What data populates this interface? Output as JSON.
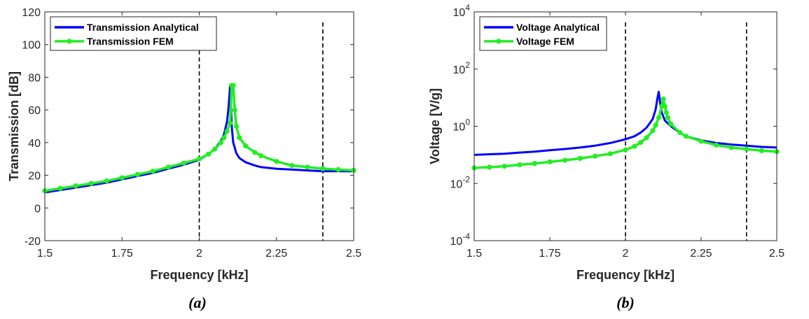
{
  "chart_data": [
    {
      "type": "line",
      "panel_label": "(a)",
      "xlabel": "Frequency [kHz]",
      "ylabel": "Transmission [dB]",
      "xlim": [
        1.5,
        2.5
      ],
      "ylim": [
        -20,
        120
      ],
      "yscale": "linear",
      "xticks": [
        1.5,
        1.75,
        2,
        2.25,
        2.5
      ],
      "xticklabels": [
        "1.5",
        "1.75",
        "2",
        "2.25",
        "2.5"
      ],
      "yticks": [
        -20,
        0,
        20,
        40,
        60,
        80,
        100,
        120
      ],
      "yticklabels": [
        "-20",
        "0",
        "20",
        "40",
        "60",
        "80",
        "100",
        "120"
      ],
      "grid": false,
      "legend_position": "top-left",
      "vlines": [
        2.0,
        2.4
      ],
      "series": [
        {
          "name": "Transmission Analytical",
          "color": "#0000ff",
          "marker": "none",
          "x": [
            1.5,
            1.55,
            1.6,
            1.65,
            1.7,
            1.75,
            1.8,
            1.85,
            1.9,
            1.95,
            2.0,
            2.03,
            2.05,
            2.07,
            2.08,
            2.09,
            2.095,
            2.1,
            2.105,
            2.11,
            2.12,
            2.13,
            2.15,
            2.18,
            2.2,
            2.25,
            2.3,
            2.35,
            2.4,
            2.45,
            2.5
          ],
          "y": [
            9.5,
            11,
            12.5,
            14,
            15.5,
            17.5,
            19.5,
            21.5,
            24,
            26.5,
            29.5,
            33,
            36,
            41,
            45,
            53,
            62,
            75,
            50,
            40,
            33.5,
            30.5,
            28,
            26,
            25,
            24,
            23.5,
            23,
            22.5,
            22.5,
            22.5
          ]
        },
        {
          "name": "Transmission FEM",
          "color": "#22ee22",
          "marker": "circle",
          "x": [
            1.5,
            1.55,
            1.6,
            1.65,
            1.7,
            1.75,
            1.8,
            1.85,
            1.9,
            1.95,
            2.0,
            2.03,
            2.05,
            2.07,
            2.08,
            2.09,
            2.1,
            2.105,
            2.11,
            2.115,
            2.12,
            2.13,
            2.15,
            2.18,
            2.2,
            2.25,
            2.3,
            2.35,
            2.4,
            2.45,
            2.5
          ],
          "y": [
            10.5,
            12,
            13.5,
            15,
            16.5,
            18.5,
            20.5,
            22.5,
            25,
            27.5,
            30,
            33,
            36,
            40,
            43,
            47,
            52,
            75,
            75,
            60,
            50,
            43,
            38,
            34,
            32,
            28.5,
            26,
            25,
            24,
            23.5,
            23
          ]
        }
      ]
    },
    {
      "type": "line",
      "panel_label": "(b)",
      "xlabel": "Frequency [kHz]",
      "ylabel": "Voltage [V/g]",
      "xlim": [
        1.5,
        2.5
      ],
      "ylim": [
        0.0001,
        10000
      ],
      "yscale": "log",
      "xticks": [
        1.5,
        1.75,
        2,
        2.25,
        2.5
      ],
      "xticklabels": [
        "1.5",
        "1.75",
        "2",
        "2.25",
        "2.5"
      ],
      "yticks": [
        0.0001,
        0.01,
        1,
        100,
        10000
      ],
      "yticklabels": [
        {
          "base": "10",
          "exp": "-4"
        },
        {
          "base": "10",
          "exp": "-2"
        },
        {
          "base": "10",
          "exp": "0"
        },
        {
          "base": "10",
          "exp": "2"
        },
        {
          "base": "10",
          "exp": "4"
        }
      ],
      "grid": false,
      "legend_position": "top-left",
      "vlines": [
        2.0,
        2.4
      ],
      "series": [
        {
          "name": "Voltage Analytical",
          "color": "#0000ff",
          "marker": "none",
          "x": [
            1.5,
            1.55,
            1.6,
            1.65,
            1.7,
            1.75,
            1.8,
            1.85,
            1.9,
            1.95,
            2.0,
            2.03,
            2.05,
            2.07,
            2.09,
            2.1,
            2.105,
            2.11,
            2.115,
            2.12,
            2.13,
            2.15,
            2.18,
            2.2,
            2.25,
            2.3,
            2.35,
            2.4,
            2.45,
            2.5
          ],
          "y": [
            0.1,
            0.105,
            0.11,
            0.12,
            0.13,
            0.145,
            0.16,
            0.18,
            0.21,
            0.26,
            0.35,
            0.45,
            0.6,
            0.9,
            1.8,
            4,
            9,
            16,
            6,
            3,
            1.6,
            1.0,
            0.6,
            0.45,
            0.32,
            0.26,
            0.23,
            0.21,
            0.19,
            0.18
          ]
        },
        {
          "name": "Voltage FEM",
          "color": "#22ee22",
          "marker": "circle",
          "x": [
            1.5,
            1.55,
            1.6,
            1.65,
            1.7,
            1.75,
            1.8,
            1.85,
            1.9,
            1.95,
            2.0,
            2.03,
            2.05,
            2.07,
            2.09,
            2.1,
            2.11,
            2.12,
            2.125,
            2.13,
            2.135,
            2.14,
            2.15,
            2.18,
            2.2,
            2.25,
            2.3,
            2.35,
            2.4,
            2.45,
            2.5
          ],
          "y": [
            0.035,
            0.037,
            0.04,
            0.045,
            0.05,
            0.057,
            0.065,
            0.075,
            0.09,
            0.11,
            0.15,
            0.2,
            0.27,
            0.4,
            0.7,
            1.1,
            2,
            5,
            9,
            5,
            3,
            2,
            1.2,
            0.6,
            0.45,
            0.3,
            0.22,
            0.18,
            0.16,
            0.14,
            0.13
          ]
        }
      ]
    }
  ]
}
